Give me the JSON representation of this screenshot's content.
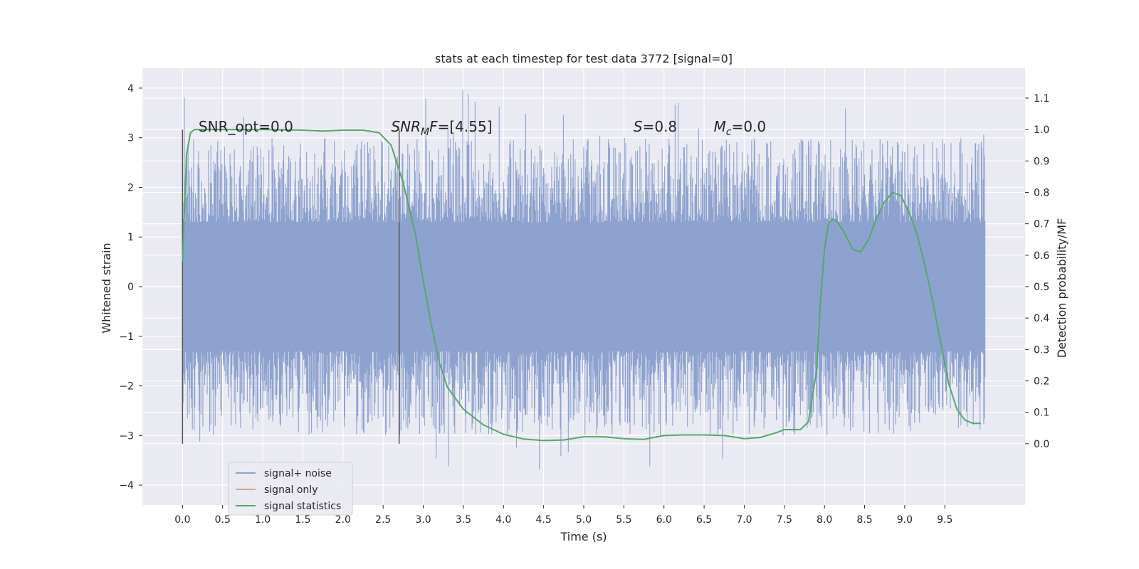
{
  "chart_data": {
    "type": "line",
    "title": "stats at each timestep for test data 3772 [signal=0]",
    "xlabel": "Time (s)",
    "ylabel": "Whitened strain",
    "y2label": "Detection probability/MF",
    "xlim": [
      -0.5,
      10.5
    ],
    "ylim": [
      -4.4,
      4.4
    ],
    "y2lim": [
      -0.195,
      1.195
    ],
    "x_ticks": [
      0.0,
      0.5,
      1.0,
      1.5,
      2.0,
      2.5,
      3.0,
      3.5,
      4.0,
      4.5,
      5.0,
      5.5,
      6.0,
      6.5,
      7.0,
      7.5,
      8.0,
      8.5,
      9.0,
      9.5
    ],
    "x_tick_labels": [
      "0.0",
      "0.5",
      "1.0",
      "1.5",
      "2.0",
      "2.5",
      "3.0",
      "3.5",
      "4.0",
      "4.5",
      "5.0",
      "5.5",
      "6.0",
      "6.5",
      "7.0",
      "7.5",
      "8.0",
      "8.5",
      "9.0",
      "9.5"
    ],
    "y_ticks": [
      4,
      3,
      2,
      1,
      0,
      -1,
      -2,
      -3,
      -4
    ],
    "y_tick_labels": [
      "4",
      "3",
      "2",
      "1",
      "0",
      "−1",
      "−2",
      "−3",
      "−4"
    ],
    "y2_ticks": [
      1.1,
      1.0,
      0.9,
      0.8,
      0.7,
      0.6,
      0.5,
      0.4,
      0.3,
      0.2,
      0.1,
      0.0
    ],
    "y2_tick_labels": [
      "1.1",
      "1.0",
      "0.9",
      "0.8",
      "0.7",
      "0.6",
      "0.5",
      "0.4",
      "0.3",
      "0.2",
      "0.1",
      "0.0"
    ],
    "grid": true,
    "legend_position": "lower-left",
    "series": [
      {
        "name": "signal+ noise",
        "color": "#8ea2cf",
        "axis": "left",
        "description": "noise",
        "x_range": [
          0.0,
          10.0
        ],
        "typical_range": [
          -1.3,
          1.3
        ],
        "extreme_range": [
          -3.9,
          4.0
        ]
      },
      {
        "name": "signal only",
        "color": "#e0a48a",
        "axis": "left",
        "x": [],
        "y": []
      },
      {
        "name": "signal statistics",
        "color": "#55a868",
        "axis": "right",
        "x": [
          0.0,
          0.05,
          0.1,
          0.15,
          0.25,
          0.5,
          1.0,
          1.5,
          1.75,
          2.0,
          2.25,
          2.45,
          2.6,
          2.75,
          2.9,
          3.0,
          3.1,
          3.2,
          3.3,
          3.5,
          3.75,
          4.0,
          4.25,
          4.5,
          4.75,
          5.0,
          5.25,
          5.5,
          5.75,
          6.0,
          6.25,
          6.5,
          6.75,
          7.0,
          7.2,
          7.4,
          7.5,
          7.6,
          7.7,
          7.8,
          7.9,
          7.95,
          8.0,
          8.05,
          8.1,
          8.15,
          8.25,
          8.35,
          8.45,
          8.55,
          8.65,
          8.75,
          8.85,
          8.95,
          9.05,
          9.15,
          9.25,
          9.35,
          9.45,
          9.55,
          9.65,
          9.75,
          9.85,
          9.95
        ],
        "y": [
          0.58,
          0.92,
          0.99,
          1.0,
          1.0,
          1.0,
          1.0,
          0.998,
          0.995,
          0.998,
          0.998,
          0.99,
          0.95,
          0.83,
          0.67,
          0.52,
          0.38,
          0.26,
          0.18,
          0.11,
          0.06,
          0.03,
          0.015,
          0.01,
          0.012,
          0.022,
          0.022,
          0.016,
          0.014,
          0.026,
          0.028,
          0.028,
          0.026,
          0.016,
          0.02,
          0.035,
          0.045,
          0.045,
          0.045,
          0.07,
          0.23,
          0.45,
          0.62,
          0.7,
          0.715,
          0.71,
          0.67,
          0.62,
          0.61,
          0.65,
          0.72,
          0.77,
          0.8,
          0.79,
          0.74,
          0.67,
          0.57,
          0.45,
          0.32,
          0.19,
          0.11,
          0.075,
          0.065,
          0.065
        ]
      }
    ],
    "vertical_lines": [
      0.0,
      2.7
    ],
    "annotations": [
      {
        "text": "SNR_opt=0.0",
        "x": 0.2
      },
      {
        "text": "SNR_MF=[4.55]",
        "x": 2.6
      },
      {
        "text": "S=0.8",
        "x": 5.62
      },
      {
        "text": "M_c=0.0",
        "x": 6.62
      }
    ]
  }
}
